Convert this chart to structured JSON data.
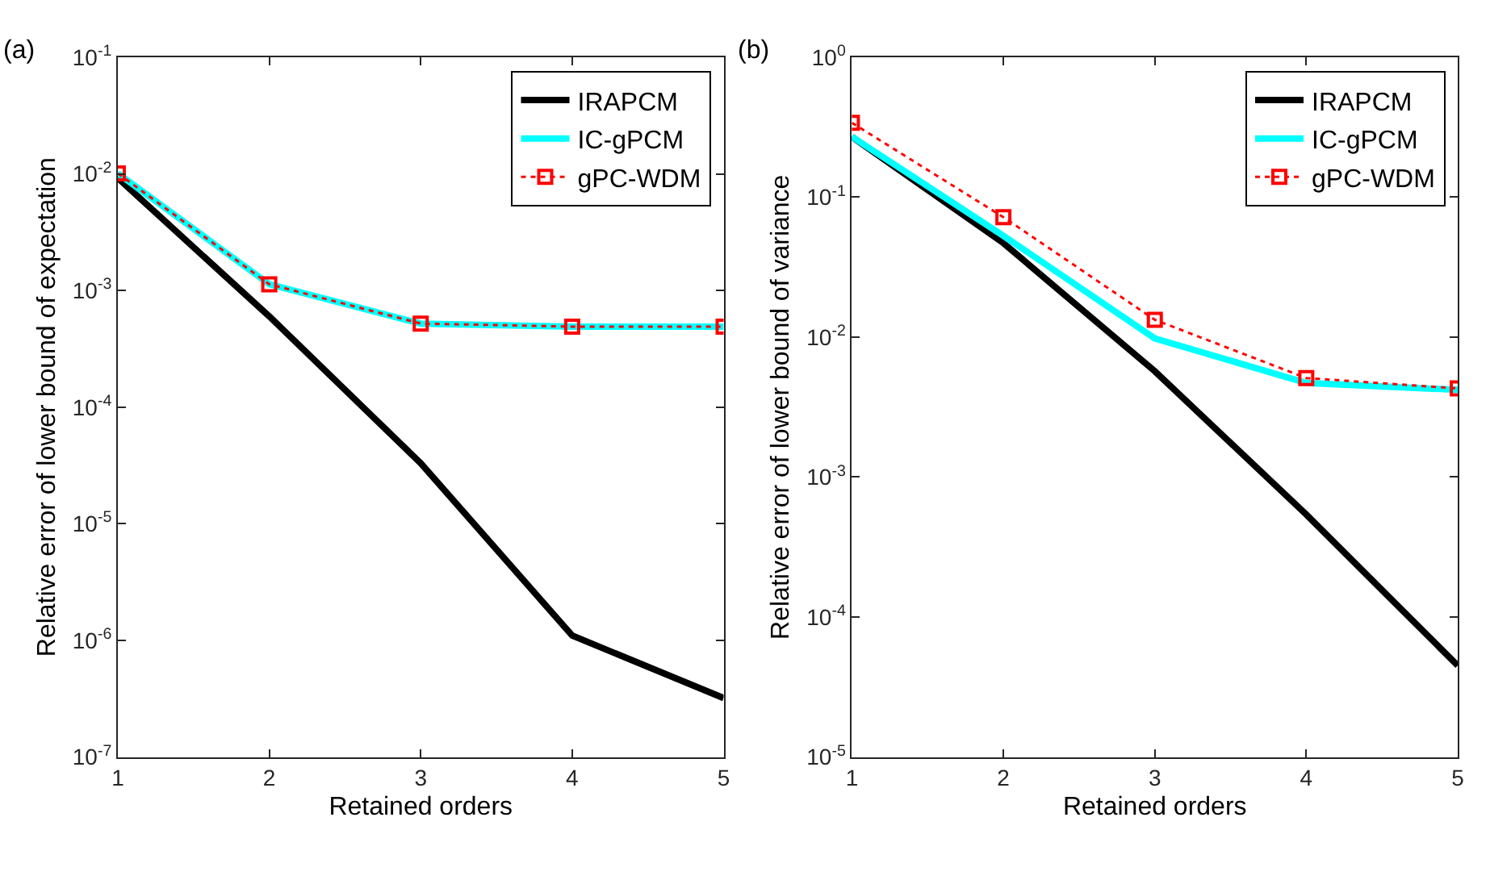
{
  "chart_data": [
    {
      "type": "line",
      "title": "(a)",
      "xlabel": "Retained orders",
      "ylabel": "Relative error of lower bound of expectation",
      "x": [
        1,
        2,
        3,
        4,
        5
      ],
      "log": "y",
      "legend": "top right",
      "xlim": [
        1,
        5
      ],
      "xticks": [
        1,
        2,
        3,
        4,
        5
      ],
      "ylim": [
        1e-07,
        0.1
      ],
      "yticks": [
        {
          "value": 1e-07,
          "label": "10$^{-7}$"
        },
        {
          "value": 1e-06,
          "label": "10$^{-6}$"
        },
        {
          "value": 1e-05,
          "label": "10$^{-5}$"
        },
        {
          "value": 0.0001,
          "label": "10$^{-4}$"
        },
        {
          "value": 0.001,
          "label": "10$^{-3}$"
        },
        {
          "value": 0.01,
          "label": "10$^{-2}$"
        },
        {
          "value": 0.1,
          "label": "10$^{-1}$"
        }
      ],
      "series": [
        {
          "name": "IRAPCM",
          "color": "#000000",
          "marker": "none",
          "line_style": "solid",
          "values": [
            0.0092,
            0.0006,
            3.3e-05,
            1.1e-06,
            3.2e-07
          ]
        },
        {
          "name": "IC-gPCM",
          "color": "#00ffff",
          "marker": "none",
          "line_style": "solid",
          "values": [
            0.0101,
            0.00113,
            0.00052,
            0.00049,
            0.00049
          ]
        },
        {
          "name": "gPC-WDM",
          "color": "#ff0000",
          "marker": "square",
          "line_style": "dotted",
          "values": [
            0.0101,
            0.00113,
            0.00052,
            0.00049,
            0.00049
          ]
        }
      ]
    },
    {
      "type": "line",
      "title": "(b)",
      "xlabel": "Retained orders",
      "ylabel": "Relative error of lower bound of variance",
      "x": [
        1,
        2,
        3,
        4,
        5
      ],
      "log": "y",
      "legend": "top right",
      "xlim": [
        1,
        5
      ],
      "xticks": [
        1,
        2,
        3,
        4,
        5
      ],
      "ylim": [
        1e-05,
        1
      ],
      "yticks": [
        {
          "value": 1e-05,
          "label": "10$^{-5}$"
        },
        {
          "value": 0.0001,
          "label": "10$^{-4}$"
        },
        {
          "value": 0.001,
          "label": "10$^{-3}$"
        },
        {
          "value": 0.01,
          "label": "10$^{-2}$"
        },
        {
          "value": 0.1,
          "label": "10$^{-1}$"
        },
        {
          "value": 1,
          "label": "10$^{0}$"
        }
      ],
      "series": [
        {
          "name": "IRAPCM",
          "color": "#000000",
          "marker": "none",
          "line_style": "solid",
          "values": [
            0.27,
            0.047,
            0.0057,
            0.00054,
            4.5e-05
          ]
        },
        {
          "name": "IC-gPCM",
          "color": "#00ffff",
          "marker": "none",
          "line_style": "solid",
          "values": [
            0.27,
            0.053,
            0.0098,
            0.0047,
            0.0042
          ]
        },
        {
          "name": "gPC-WDM",
          "color": "#ff0000",
          "marker": "square",
          "line_style": "dotted",
          "values": [
            0.34,
            0.072,
            0.0133,
            0.0051,
            0.0043
          ]
        }
      ]
    }
  ]
}
